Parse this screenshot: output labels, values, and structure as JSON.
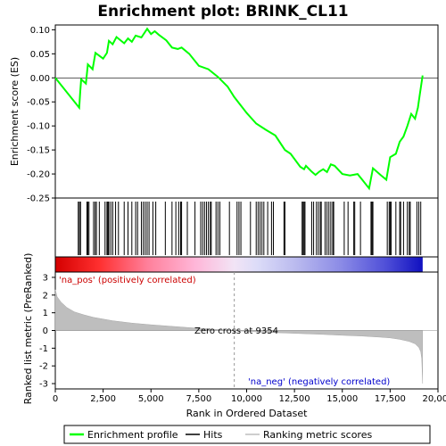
{
  "chart_data": {
    "type": "line",
    "title": "Enrichment plot: BRINK_CL11",
    "xlabel": "Rank in Ordered Dataset",
    "top_ylabel": "Enrichment score (ES)",
    "bottom_ylabel": "Ranked list metric (PreRanked)",
    "x_ticks": [
      0,
      2500,
      5000,
      7500,
      10000,
      12500,
      15000,
      17500,
      20000
    ],
    "x_tick_labels": [
      "0",
      "2,500",
      "5,000",
      "7,500",
      "10,000",
      "12,500",
      "15,000",
      "17,500",
      "20,000"
    ],
    "xlim": [
      0,
      20000
    ],
    "n_genes": 19200,
    "es_ylim": [
      -0.25,
      0.11
    ],
    "es_ticks": [
      0.1,
      0.05,
      0.0,
      -0.05,
      -0.1,
      -0.15,
      -0.2,
      -0.25
    ],
    "es_tick_labels": [
      "0.10",
      "0.05",
      "0.00",
      "-0.05",
      "-0.10",
      "-0.15",
      "-0.20",
      "-0.25"
    ],
    "metric_ylim": [
      -3.3,
      3.3
    ],
    "metric_ticks": [
      3,
      2,
      1,
      0,
      -1,
      -2,
      -3
    ],
    "metric_tick_labels": [
      "3",
      "2",
      "1",
      "0",
      "-1",
      "-2",
      "-3"
    ],
    "zero_cross_rank": 9354,
    "zero_cross_label": "Zero cross at 9354",
    "pos_label": "'na_pos' (positively correlated)",
    "neg_label": "'na_neg' (negatively correlated)",
    "es_curve": [
      [
        0,
        0.0
      ],
      [
        1250,
        -0.062
      ],
      [
        1300,
        -0.03
      ],
      [
        1350,
        -0.003
      ],
      [
        1600,
        -0.012
      ],
      [
        1700,
        0.028
      ],
      [
        1950,
        0.018
      ],
      [
        2100,
        0.052
      ],
      [
        2500,
        0.04
      ],
      [
        2700,
        0.052
      ],
      [
        2800,
        0.077
      ],
      [
        3000,
        0.07
      ],
      [
        3200,
        0.085
      ],
      [
        3600,
        0.072
      ],
      [
        3800,
        0.082
      ],
      [
        4000,
        0.075
      ],
      [
        4200,
        0.088
      ],
      [
        4500,
        0.084
      ],
      [
        4800,
        0.102
      ],
      [
        5000,
        0.091
      ],
      [
        5200,
        0.097
      ],
      [
        5400,
        0.09
      ],
      [
        5800,
        0.078
      ],
      [
        6100,
        0.063
      ],
      [
        6400,
        0.06
      ],
      [
        6600,
        0.063
      ],
      [
        7000,
        0.05
      ],
      [
        7500,
        0.025
      ],
      [
        8000,
        0.018
      ],
      [
        8500,
        0.002
      ],
      [
        9000,
        -0.018
      ],
      [
        9354,
        -0.04
      ],
      [
        10000,
        -0.073
      ],
      [
        10500,
        -0.095
      ],
      [
        11000,
        -0.108
      ],
      [
        11500,
        -0.12
      ],
      [
        12000,
        -0.15
      ],
      [
        12300,
        -0.158
      ],
      [
        12800,
        -0.185
      ],
      [
        13000,
        -0.19
      ],
      [
        13100,
        -0.183
      ],
      [
        13400,
        -0.195
      ],
      [
        13600,
        -0.202
      ],
      [
        13800,
        -0.195
      ],
      [
        14000,
        -0.19
      ],
      [
        14200,
        -0.196
      ],
      [
        14400,
        -0.18
      ],
      [
        14600,
        -0.183
      ],
      [
        15000,
        -0.2
      ],
      [
        15400,
        -0.203
      ],
      [
        15800,
        -0.2
      ],
      [
        16000,
        -0.21
      ],
      [
        16400,
        -0.23
      ],
      [
        16600,
        -0.188
      ],
      [
        17000,
        -0.202
      ],
      [
        17300,
        -0.212
      ],
      [
        17500,
        -0.165
      ],
      [
        17800,
        -0.158
      ],
      [
        18000,
        -0.133
      ],
      [
        18200,
        -0.122
      ],
      [
        18400,
        -0.1
      ],
      [
        18600,
        -0.075
      ],
      [
        18800,
        -0.085
      ],
      [
        18950,
        -0.062
      ],
      [
        19050,
        -0.035
      ],
      [
        19200,
        0.005
      ]
    ],
    "hits": [
      1200,
      1260,
      1320,
      1650,
      1700,
      1760,
      2000,
      2080,
      2150,
      2300,
      2600,
      2700,
      2750,
      2800,
      2900,
      3000,
      3150,
      3300,
      3600,
      3800,
      4000,
      4200,
      4300,
      4500,
      4600,
      4700,
      4800,
      4900,
      5100,
      5250,
      5750,
      6100,
      6300,
      6450,
      6550,
      6600,
      6900,
      7300,
      7600,
      7700,
      7800,
      7900,
      8000,
      8100,
      8150,
      8400,
      8500,
      8600,
      9100,
      9500,
      9600,
      9700,
      10200,
      10500,
      10600,
      10700,
      10800,
      10900,
      11100,
      11300,
      11400,
      11950,
      12000,
      12900,
      12950,
      13000,
      13050,
      13400,
      13500,
      13650,
      13750,
      13850,
      13900,
      14100,
      14200,
      14300,
      14400,
      14500,
      14550,
      15100,
      15300,
      15600,
      15650,
      15950,
      16500,
      16550,
      16600,
      17350,
      17450,
      17500,
      17550,
      17800,
      18000,
      18050,
      18200,
      18400,
      18500,
      18550,
      18900,
      19000,
      19100
    ],
    "metric_curve": [
      [
        0,
        2.3
      ],
      [
        100,
        1.9
      ],
      [
        300,
        1.6
      ],
      [
        600,
        1.3
      ],
      [
        1000,
        1.05
      ],
      [
        1500,
        0.88
      ],
      [
        2000,
        0.74
      ],
      [
        3000,
        0.55
      ],
      [
        4000,
        0.42
      ],
      [
        5000,
        0.32
      ],
      [
        6000,
        0.24
      ],
      [
        7000,
        0.16
      ],
      [
        8000,
        0.09
      ],
      [
        9000,
        0.02
      ],
      [
        9354,
        0.0
      ],
      [
        10000,
        -0.05
      ],
      [
        11000,
        -0.1
      ],
      [
        12000,
        -0.14
      ],
      [
        13000,
        -0.18
      ],
      [
        14000,
        -0.22
      ],
      [
        15000,
        -0.27
      ],
      [
        16000,
        -0.31
      ],
      [
        17000,
        -0.38
      ],
      [
        17500,
        -0.42
      ],
      [
        18000,
        -0.5
      ],
      [
        18500,
        -0.62
      ],
      [
        18800,
        -0.75
      ],
      [
        19000,
        -0.95
      ],
      [
        19100,
        -1.2
      ],
      [
        19150,
        -1.6
      ],
      [
        19200,
        -3.0
      ]
    ],
    "legend": [
      {
        "label": "Enrichment profile",
        "color": "#00ff00"
      },
      {
        "label": "Hits",
        "color": "#000000"
      },
      {
        "label": "Ranking metric scores",
        "color": "#bebebe"
      }
    ]
  }
}
